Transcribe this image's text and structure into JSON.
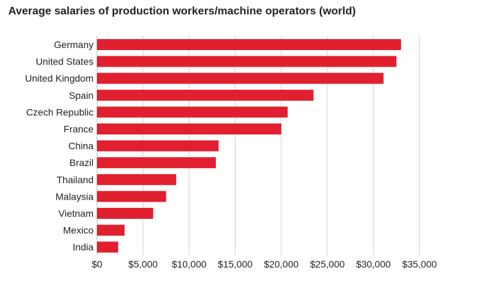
{
  "chart_data": {
    "type": "bar",
    "orientation": "horizontal",
    "title": "Average salaries of production workers/machine operators (world)",
    "xlabel": "",
    "ylabel": "",
    "categories": [
      "Germany",
      "United States",
      "United Kingdom",
      "Spain",
      "Czech Republic",
      "France",
      "China",
      "Brazil",
      "Thailand",
      "Malaysia",
      "Vietnam",
      "Mexico",
      "India"
    ],
    "values": [
      33000,
      32500,
      31100,
      23500,
      20700,
      20000,
      13200,
      12900,
      8600,
      7500,
      6100,
      3000,
      2300
    ],
    "xlim": [
      0,
      35000
    ],
    "ticks": [
      0,
      5000,
      10000,
      15000,
      20000,
      25000,
      30000,
      35000
    ],
    "tick_labels": [
      "$0",
      "$5,000",
      "$10,000",
      "$15,000",
      "$20,000",
      "$25,000",
      "$30,000",
      "$35,000"
    ],
    "grid": true,
    "legend": "none",
    "bar_color": "#e0202f"
  }
}
